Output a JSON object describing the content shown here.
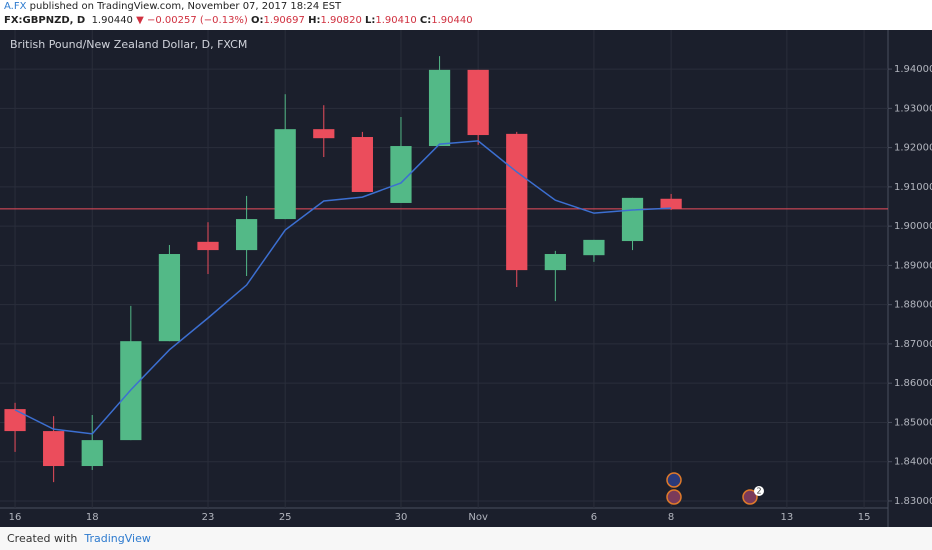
{
  "header": {
    "author": "A.FX",
    "published": "published on TradingView.com, November 07, 2017 18:24 EST",
    "symbol": "FX:GBPNZD, D",
    "last": "1.90440",
    "change": "▼ −0.00257 (−0.13%)",
    "ohlc": [
      {
        "label": "O:",
        "value": "1.90697"
      },
      {
        "label": "H:",
        "value": "1.90820"
      },
      {
        "label": "L:",
        "value": "1.90410"
      },
      {
        "label": "C:",
        "value": "1.90440"
      }
    ]
  },
  "footer": {
    "created": "Created with",
    "brand": "TradingView"
  },
  "chart_data": {
    "type": "candlestick",
    "title": "British Pound/New Zealand Dollar, D, FXCM",
    "open": [
      1.8534,
      1.8478,
      1.8389,
      1.8455,
      1.8707,
      1.896,
      1.8939,
      1.9018,
      1.9247,
      1.9227,
      1.9059,
      1.9204,
      1.9398,
      1.9235,
      1.8888,
      1.8926,
      1.8962,
      1.90697
    ],
    "high": [
      1.855,
      1.8516,
      1.8519,
      1.8797,
      1.8952,
      1.901,
      1.9077,
      1.9336,
      1.9308,
      1.924,
      1.9278,
      1.9433,
      1.9398,
      1.924,
      1.8937,
      1.8965,
      1.9072,
      1.9082
    ],
    "low": [
      1.8425,
      1.8348,
      1.8379,
      1.8455,
      1.8707,
      1.8878,
      1.8873,
      1.9018,
      1.9176,
      1.9087,
      1.9059,
      1.9204,
      1.9207,
      1.8845,
      1.8809,
      1.8909,
      1.8939,
      1.9041
    ],
    "close": [
      1.8478,
      1.8389,
      1.8455,
      1.8707,
      1.8929,
      1.8939,
      1.9018,
      1.9247,
      1.9224,
      1.9087,
      1.9204,
      1.9398,
      1.9232,
      1.8888,
      1.8929,
      1.8965,
      1.9072,
      1.9044
    ],
    "up_color": "#53b987",
    "down_color": "#eb4d5c",
    "moving_average": {
      "color": "#3c6fd1",
      "values": [
        1.8532,
        1.8483,
        1.8471,
        1.8583,
        1.8685,
        1.8766,
        1.885,
        1.899,
        1.9064,
        1.9074,
        1.911,
        1.9209,
        1.9217,
        1.9138,
        1.9066,
        1.9033,
        1.9041,
        1.9046
      ]
    },
    "price_line": {
      "value": 1.9044,
      "color": "#eb4d5c"
    },
    "annotations": [
      "2"
    ],
    "ylim": [
      1.8277,
      1.9497
    ],
    "yticks": [
      {
        "value": 1.83,
        "label": "1.83000"
      },
      {
        "value": 1.84,
        "label": "1.84000"
      },
      {
        "value": 1.85,
        "label": "1.85000"
      },
      {
        "value": 1.86,
        "label": "1.86000"
      },
      {
        "value": 1.87,
        "label": "1.87000"
      },
      {
        "value": 1.88,
        "label": "1.88000"
      },
      {
        "value": 1.89,
        "label": "1.89000"
      },
      {
        "value": 1.9,
        "label": "1.90000"
      },
      {
        "value": 1.91,
        "label": "1.91000"
      },
      {
        "value": 1.92,
        "label": "1.92000"
      },
      {
        "value": 1.93,
        "label": "1.93000"
      },
      {
        "value": 1.94,
        "label": "1.94000"
      }
    ],
    "xlim": [
      -0.39,
      22.62
    ],
    "xticks": [
      {
        "value": 0,
        "label": "16"
      },
      {
        "value": 2,
        "label": "18"
      },
      {
        "value": 5,
        "label": "23"
      },
      {
        "value": 7,
        "label": "25"
      },
      {
        "value": 10,
        "label": "30"
      },
      {
        "value": 12,
        "label": "Nov"
      },
      {
        "value": 15,
        "label": "6"
      },
      {
        "value": 17,
        "label": "8"
      },
      {
        "value": 20,
        "label": "13"
      },
      {
        "value": 22,
        "label": "15"
      }
    ],
    "grid": true
  }
}
